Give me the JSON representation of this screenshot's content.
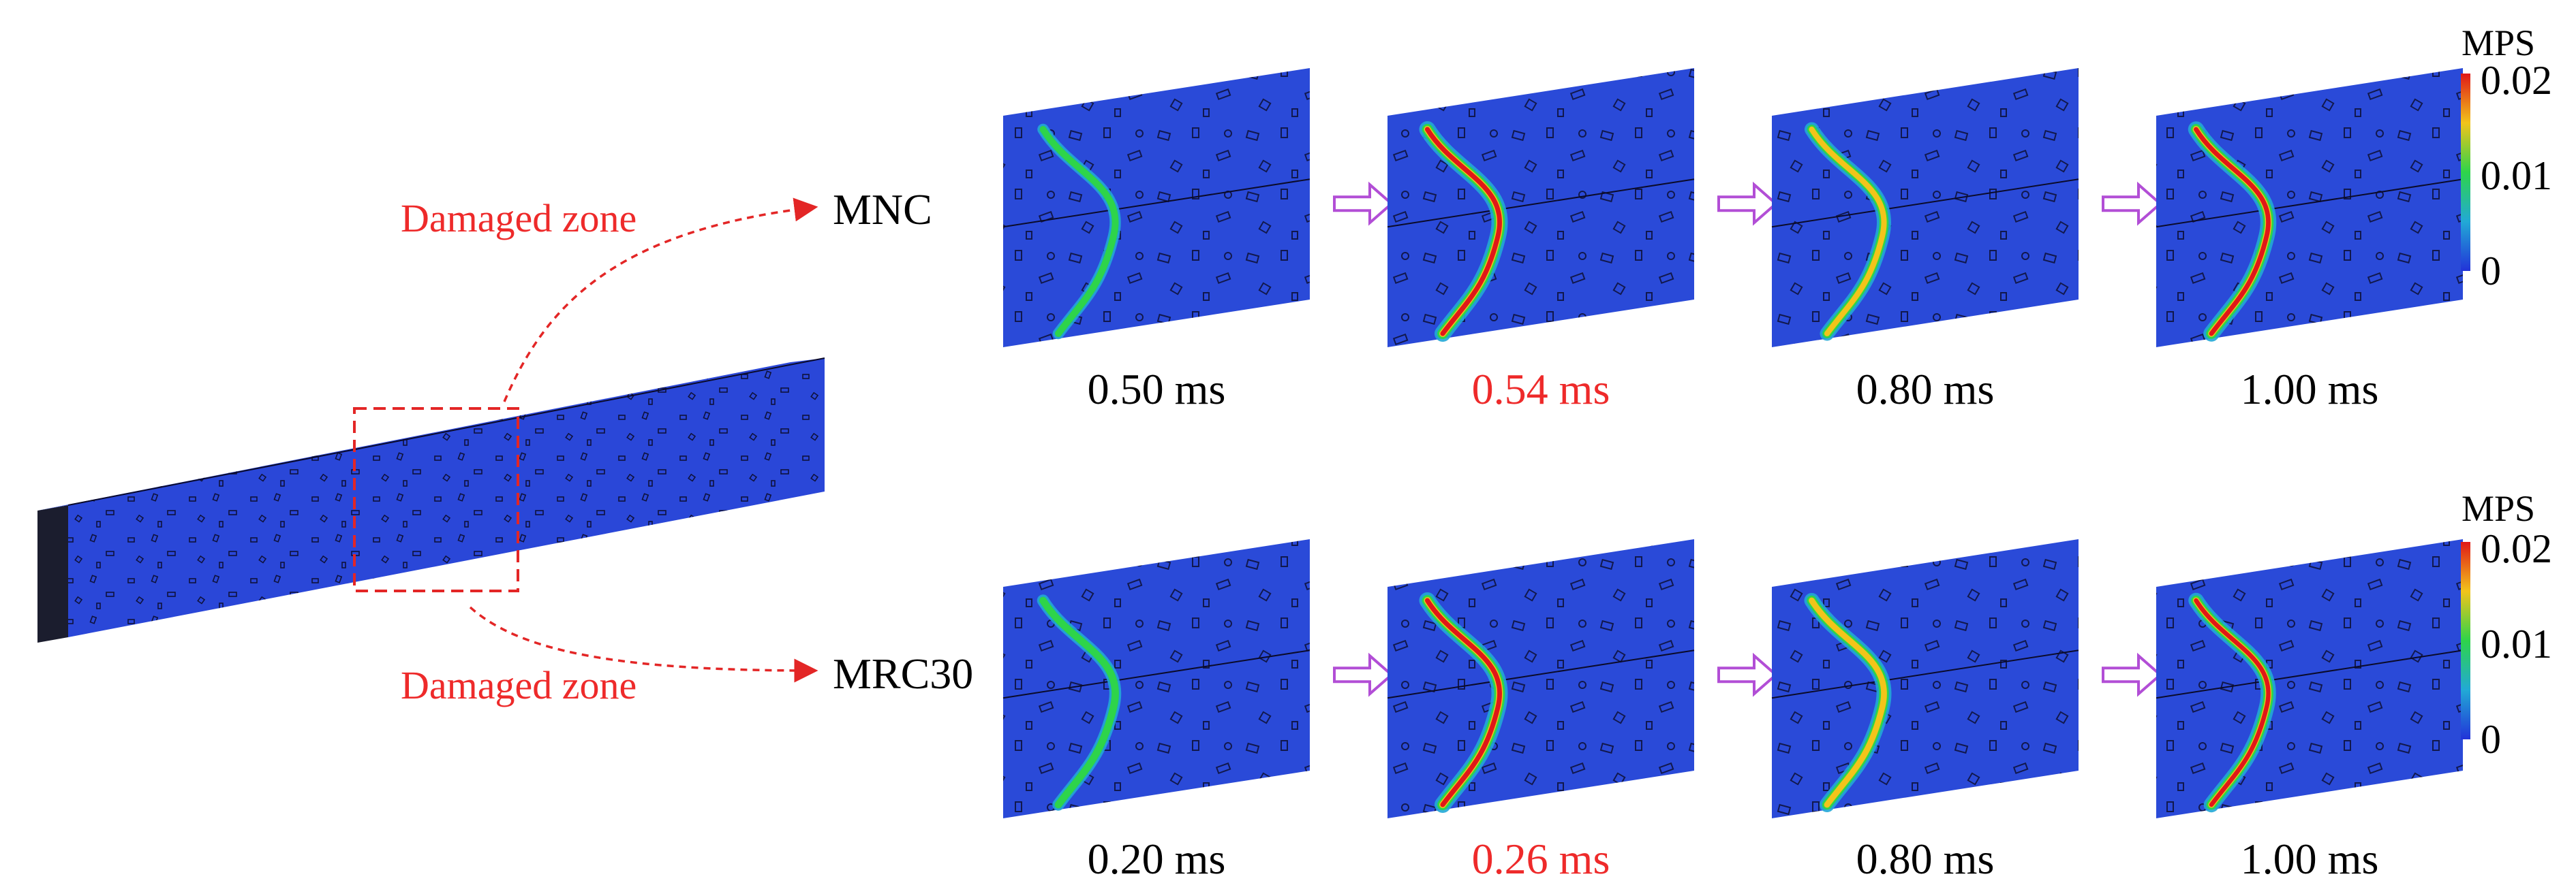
{
  "beam": {
    "callout_label": "Damaged zone",
    "colors": {
      "face": "#2a47d8",
      "end": "#1b1d2e",
      "box": "#e32626"
    }
  },
  "rows": [
    {
      "label": "MNC",
      "zone_label": "Damaged zone",
      "frames": [
        {
          "time": "0.50 ms",
          "highlight": false,
          "crack_level": 0.25
        },
        {
          "time": "0.54 ms",
          "highlight": true,
          "crack_level": 1.0
        },
        {
          "time": "0.80 ms",
          "highlight": false,
          "crack_level": 0.7
        },
        {
          "time": "1.00 ms",
          "highlight": false,
          "crack_level": 0.95
        }
      ]
    },
    {
      "label": "MRC30",
      "zone_label": "Damaged zone",
      "frames": [
        {
          "time": "0.20 ms",
          "highlight": false,
          "crack_level": 0.35
        },
        {
          "time": "0.26 ms",
          "highlight": true,
          "crack_level": 1.0
        },
        {
          "time": "0.80 ms",
          "highlight": false,
          "crack_level": 0.8
        },
        {
          "time": "1.00 ms",
          "highlight": false,
          "crack_level": 0.85
        }
      ]
    }
  ],
  "legend": {
    "title": "MPS",
    "ticks": [
      "0.02",
      "0.01",
      "0"
    ],
    "colors": [
      "#e01818",
      "#f2c41a",
      "#2ed44a",
      "#22a9d6",
      "#2233d8"
    ]
  },
  "colors": {
    "slab": "#2a4ad8",
    "arrow": "#b24ed6",
    "accent": "#ee2a2a"
  }
}
